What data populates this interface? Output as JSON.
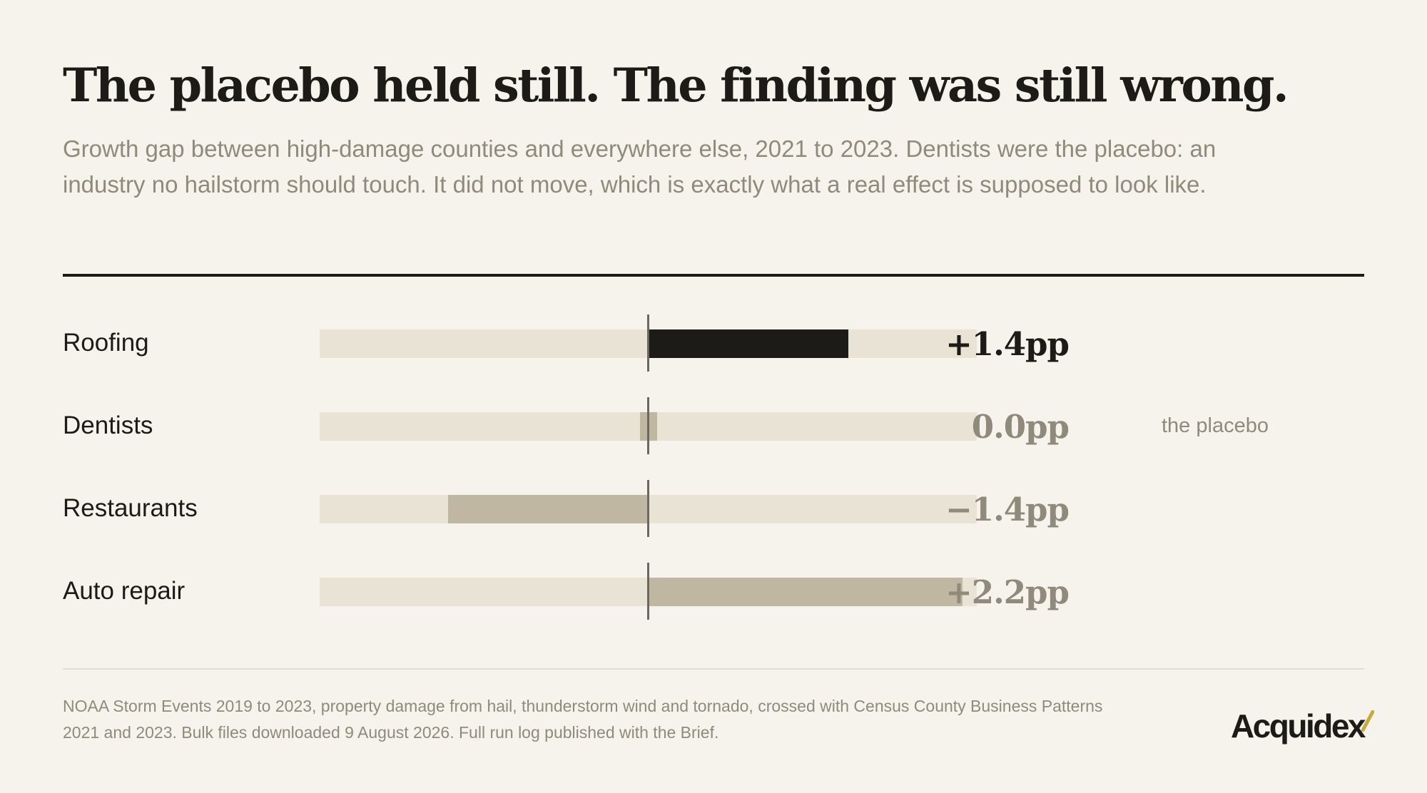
{
  "header": {
    "title": "The placebo held still. The finding was still wrong.",
    "subtitle": "Growth gap between high-damage counties and everywhere else, 2021 to 2023. Dentists were the placebo: an industry no hailstorm should touch. It did not move, which is exactly what a real effect is supposed to look like."
  },
  "chart_data": {
    "type": "bar",
    "orientation": "horizontal",
    "categories": [
      "Roofing",
      "Dentists",
      "Restaurants",
      "Auto repair"
    ],
    "values": [
      1.4,
      0.0,
      -1.4,
      2.2
    ],
    "value_labels": [
      "+1.4pp",
      "0.0pp",
      "−1.4pp",
      "+2.2pp"
    ],
    "unit": "pp",
    "xlim": [
      -2.3,
      2.3
    ],
    "highlight": "Roofing",
    "annotations": [
      {
        "category": "Dentists",
        "text": "the placebo"
      }
    ],
    "colors": {
      "highlight": "#1c1b17",
      "muted": "#c0b7a3",
      "track": "#e9e3d5",
      "zero_line": "#6c685f"
    }
  },
  "footer": {
    "source": "NOAA Storm Events 2019 to 2023, property damage from hail, thunderstorm wind and tornado, crossed with Census County Business Patterns 2021 and 2023. Bulk files downloaded 9 August 2026. Full run log published with the Brief.",
    "brand": "Acquidex",
    "brand_accent_color": "#c9a83e"
  },
  "colors": {
    "background": "#f6f3ec",
    "text": "#1c1b17",
    "muted_text": "#8f8a7b"
  }
}
